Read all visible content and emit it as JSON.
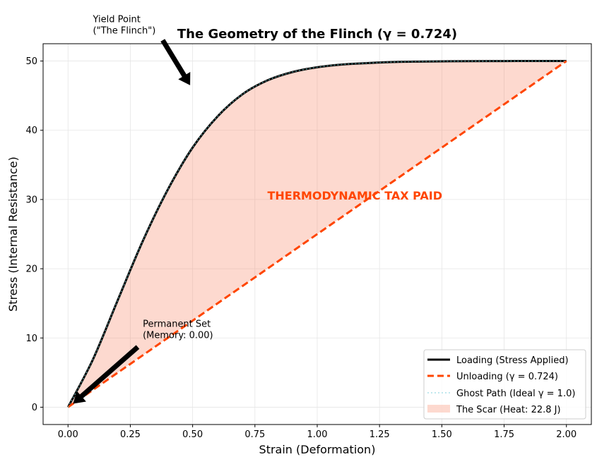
{
  "chart_data": {
    "type": "line",
    "title": "The Geometry of the Flinch (γ = 0.724)",
    "xlabel": "Strain (Deformation)",
    "ylabel": "Stress (Internal Resistance)",
    "xlim": [
      -0.1,
      2.1
    ],
    "ylim": [
      -2.5,
      52.5
    ],
    "xticks": [
      0.0,
      0.25,
      0.5,
      0.75,
      1.0,
      1.25,
      1.5,
      1.75,
      2.0
    ],
    "xtick_labels": [
      "0.00",
      "0.25",
      "0.50",
      "0.75",
      "1.00",
      "1.25",
      "1.50",
      "1.75",
      "2.00"
    ],
    "yticks": [
      0,
      10,
      20,
      30,
      40,
      50
    ],
    "ytick_labels": [
      "0",
      "10",
      "20",
      "30",
      "40",
      "50"
    ],
    "grid": true,
    "legend_position": "lower-right",
    "series": [
      {
        "name": "Loading (Stress Applied)",
        "color": "#000000",
        "style": "solid",
        "x": [
          0.0,
          0.1,
          0.2,
          0.3,
          0.4,
          0.5,
          0.6,
          0.7,
          0.8,
          0.9,
          1.0,
          1.1,
          1.2,
          1.3,
          1.4,
          1.5,
          1.6,
          1.7,
          1.8,
          1.9,
          2.0
        ],
        "y": [
          0.0,
          6.9,
          15.5,
          24.0,
          31.4,
          37.5,
          42.0,
          45.2,
          47.2,
          48.4,
          49.1,
          49.5,
          49.7,
          49.85,
          49.92,
          49.96,
          49.98,
          49.99,
          50.0,
          50.0,
          50.0
        ]
      },
      {
        "name": "Unloading (γ = 0.724)",
        "color": "#ff4500",
        "style": "dashed",
        "x": [
          0.0,
          2.0
        ],
        "y": [
          0.0,
          50.0
        ]
      },
      {
        "name": "Ghost Path (Ideal γ = 1.0)",
        "color": "#5f9ea0",
        "style": "dotted",
        "x": [
          0.0,
          0.1,
          0.2,
          0.3,
          0.4,
          0.5,
          0.6,
          0.7,
          0.8,
          0.9,
          1.0,
          1.1,
          1.2,
          1.3,
          1.4,
          1.5,
          1.6,
          1.7,
          1.8,
          1.9,
          2.0
        ],
        "y": [
          0.0,
          6.9,
          15.5,
          24.0,
          31.4,
          37.5,
          42.0,
          45.2,
          47.2,
          48.4,
          49.1,
          49.5,
          49.7,
          49.85,
          49.92,
          49.96,
          49.98,
          49.99,
          50.0,
          50.0,
          50.0
        ]
      }
    ],
    "fill": {
      "name": "The Scar (Heat: 22.8 J)",
      "color": "#fa8060",
      "between": [
        "Loading (Stress Applied)",
        "Unloading (γ = 0.724)"
      ]
    },
    "annotations": [
      {
        "id": "yield",
        "lines": [
          "Yield Point",
          "(\"The Flinch\")"
        ],
        "text_at": [
          0.1,
          54.0
        ],
        "arrow_from": [
          0.38,
          53.0
        ],
        "arrow_to": [
          0.49,
          46.5
        ],
        "color": "#000000"
      },
      {
        "id": "tax",
        "lines": [
          "THERMODYNAMIC TAX PAID"
        ],
        "text_at": [
          0.8,
          30.0
        ],
        "color": "#ff4500"
      },
      {
        "id": "permset",
        "lines": [
          "Permanent Set",
          "(Memory: 0.00)"
        ],
        "text_at": [
          0.3,
          10.0
        ],
        "arrow_from": [
          0.28,
          8.7
        ],
        "arrow_to": [
          0.02,
          0.5
        ],
        "color": "#000000"
      }
    ]
  }
}
